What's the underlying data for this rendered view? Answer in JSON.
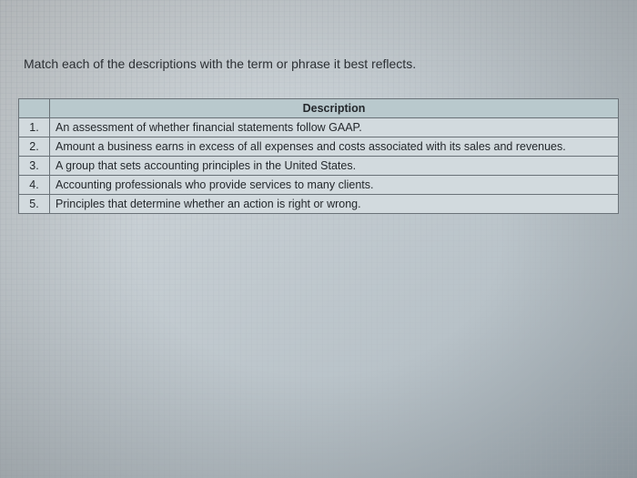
{
  "instruction": "Match each of the descriptions with the term or phrase it best reflects.",
  "table": {
    "header": "Description",
    "rows": [
      {
        "num": "1.",
        "desc": "An assessment of whether financial statements follow GAAP."
      },
      {
        "num": "2.",
        "desc": "Amount a business earns in excess of all expenses and costs associated with its sales and revenues."
      },
      {
        "num": "3.",
        "desc": "A group that sets accounting principles in the United States."
      },
      {
        "num": "4.",
        "desc": "Accounting professionals who provide services to many clients."
      },
      {
        "num": "5.",
        "desc": "Principles that determine whether an action is right or wrong."
      }
    ]
  },
  "colors": {
    "header_bg": "#b9c9cd",
    "cell_bg": "#d2dade",
    "border": "#6a7278",
    "text": "#24282c"
  }
}
